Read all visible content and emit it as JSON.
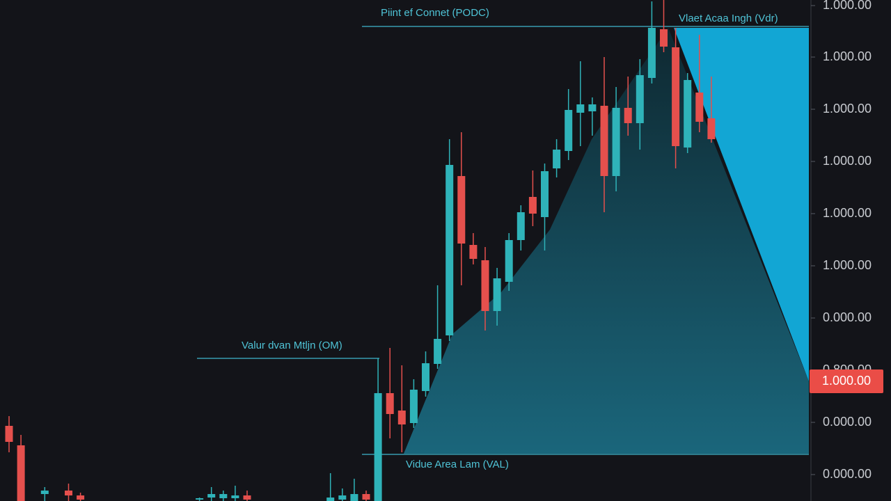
{
  "chart_data": {
    "type": "candlestick",
    "up_color": "#2fb3b9",
    "down_color": "#e5504d",
    "ylim": [
      0,
      720
    ],
    "yticks": [
      {
        "value": 712,
        "label": "1.000.00"
      },
      {
        "value": 638,
        "label": "1.000.00"
      },
      {
        "value": 563,
        "label": "1.000.00"
      },
      {
        "value": 488,
        "label": "1.000.00"
      },
      {
        "value": 413,
        "label": "1.000.00"
      },
      {
        "value": 338,
        "label": "1.000.00"
      },
      {
        "value": 263,
        "label": "0.000.00"
      },
      {
        "value": 188,
        "label": "0.800.00"
      },
      {
        "value": 113,
        "label": "0.000.00"
      },
      {
        "value": 38,
        "label": "0.000.00"
      }
    ],
    "last_price": {
      "value": 172,
      "label": "1.000.00"
    },
    "levels": [
      {
        "name": "Piint ef Connet (PODC)",
        "value": 682
      },
      {
        "name": "Valur dvan Mtljn (OM)",
        "value": 205
      },
      {
        "name": "Vidue Area Lam (VAL)",
        "value": 67
      }
    ],
    "annotations": [
      "Vlaet Acaa Ingh (Vdr)"
    ],
    "x": [
      0,
      1,
      3,
      5,
      6,
      16,
      17,
      18,
      19,
      20,
      27,
      28,
      29,
      30,
      31,
      32,
      33,
      34,
      35,
      36,
      37,
      38,
      39,
      40,
      41,
      42,
      43,
      44,
      45,
      46,
      47,
      48,
      49,
      50,
      51,
      52,
      53,
      54,
      55,
      56,
      57,
      58,
      59
    ],
    "open": [
      108,
      80,
      10,
      15,
      8,
      2,
      5,
      4,
      4,
      8,
      0,
      2,
      0,
      10,
      0,
      155,
      130,
      112,
      158,
      197,
      238,
      467,
      368,
      346,
      273,
      315,
      375,
      437,
      408,
      478,
      503,
      558,
      560,
      568,
      467,
      565,
      543,
      608,
      678,
      652,
      508,
      587,
      550
    ],
    "high": [
      122,
      95,
      20,
      25,
      12,
      5,
      20,
      15,
      22,
      15,
      40,
      18,
      32,
      15,
      205,
      220,
      195,
      175,
      215,
      310,
      520,
      530,
      385,
      365,
      335,
      385,
      425,
      475,
      485,
      520,
      592,
      632,
      580,
      638,
      595,
      610,
      635,
      718,
      720,
      680,
      615,
      670,
      610
    ],
    "low": [
      70,
      0,
      0,
      0,
      0,
      0,
      0,
      0,
      0,
      0,
      0,
      0,
      0,
      0,
      0,
      90,
      70,
      105,
      150,
      190,
      230,
      310,
      340,
      245,
      252,
      302,
      360,
      395,
      360,
      465,
      490,
      510,
      525,
      415,
      445,
      525,
      505,
      600,
      645,
      478,
      500,
      530,
      515
    ],
    "close": [
      85,
      0,
      15,
      8,
      2,
      4,
      10,
      10,
      8,
      2,
      5,
      8,
      10,
      2,
      155,
      125,
      110,
      160,
      198,
      233,
      483,
      370,
      348,
      273,
      320,
      375,
      415,
      413,
      474,
      505,
      562,
      570,
      570,
      467,
      565,
      543,
      612,
      680,
      653,
      510,
      605,
      545,
      520
    ]
  }
}
